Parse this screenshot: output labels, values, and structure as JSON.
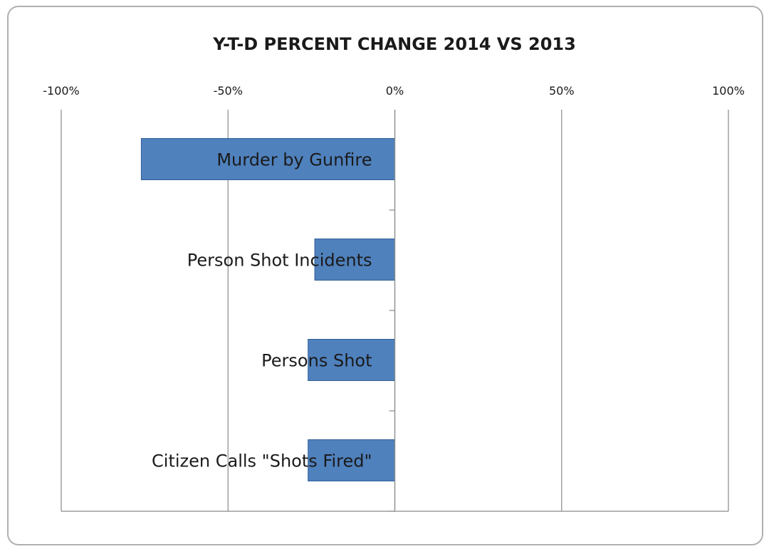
{
  "chart_data": {
    "type": "bar",
    "orientation": "horizontal",
    "title": "Y-T-D PERCENT CHANGE 2014 VS 2013",
    "xlabel": "",
    "ylabel": "",
    "x_tick_labels": [
      "-100%",
      "-50%",
      "0%",
      "50%",
      "100%"
    ],
    "xlim": [
      -100,
      100
    ],
    "grid": true,
    "legend": "none",
    "bar_color": "#4f81bd",
    "bar_edge_color": "#2e5d96",
    "categories": [
      "Murder by Gunfire",
      "Person Shot Incidents",
      "Persons Shot",
      "Citizen Calls \"Shots Fired\""
    ],
    "values": [
      -76,
      -24,
      -26,
      -26
    ]
  }
}
